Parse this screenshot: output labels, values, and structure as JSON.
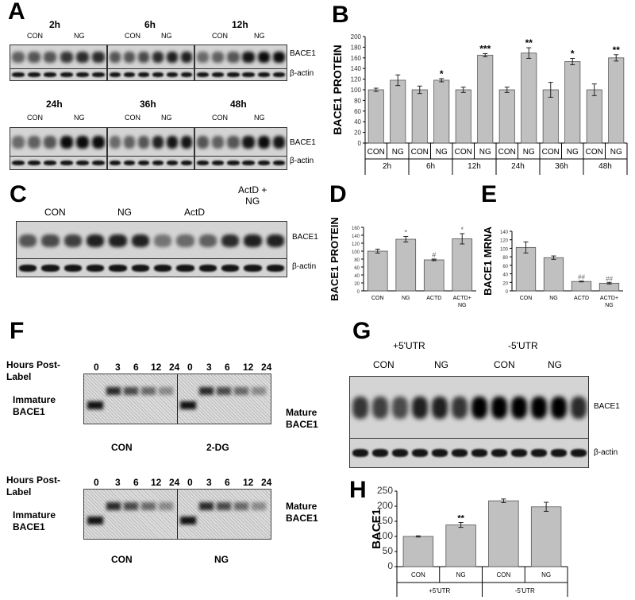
{
  "panels": {
    "A": "A",
    "B": "B",
    "C": "C",
    "D": "D",
    "E": "E",
    "F": "F",
    "G": "G",
    "H": "H"
  },
  "panelA": {
    "times_top": [
      "2h",
      "6h",
      "12h"
    ],
    "times_bottom": [
      "24h",
      "36h",
      "48h"
    ],
    "con": "CON",
    "ng": "NG",
    "bace1": "BACE1",
    "actin": "β-actin"
  },
  "panelC": {
    "groups": [
      "CON",
      "NG",
      "ActD",
      "ActD +\nNG"
    ],
    "bace1": "BACE1",
    "actin": "β-actin"
  },
  "panelF": {
    "hours_label": "Hours Post-\nLabel",
    "hours": [
      "0",
      "3",
      "6",
      "12",
      "24"
    ],
    "immature": "Immature\nBACE1",
    "mature": "Mature\nBACE1",
    "top_groups": [
      "CON",
      "2-DG"
    ],
    "bottom_groups": [
      "CON",
      "NG"
    ]
  },
  "panelG": {
    "groups": [
      "+5'UTR",
      "-5'UTR"
    ],
    "con": "CON",
    "ng": "NG",
    "bace1": "BACE1",
    "actin": "β-actin"
  },
  "chart_data": [
    {
      "id": "B",
      "type": "bar",
      "ylabel": "BACE1 PROTEIN",
      "ylim": [
        0,
        200
      ],
      "yticks": [
        0,
        20,
        40,
        60,
        80,
        100,
        120,
        140,
        160,
        180,
        200
      ],
      "categories": [
        "CON",
        "NG",
        "CON",
        "NG",
        "CON",
        "NG",
        "CON",
        "NG",
        "CON",
        "NG",
        "CON",
        "NG"
      ],
      "groups": [
        "2h",
        "6h",
        "12h",
        "24h",
        "36h",
        "48h"
      ],
      "values": [
        100,
        118,
        100,
        118,
        100,
        165,
        100,
        169,
        100,
        153,
        100,
        160
      ],
      "errors": [
        3,
        10,
        7,
        3,
        5,
        3,
        5,
        10,
        14,
        6,
        11,
        6
      ],
      "annotations": [
        "",
        "",
        "",
        "*",
        "",
        "***",
        "",
        "**",
        "",
        "*",
        "",
        "**"
      ]
    },
    {
      "id": "D",
      "type": "bar",
      "ylabel": "BACE1 PROTEIN",
      "ylim": [
        0,
        160
      ],
      "yticks": [
        0,
        20,
        40,
        60,
        80,
        100,
        120,
        140,
        160
      ],
      "categories": [
        "CON",
        "NG",
        "ACTD",
        "ACTD+\nNG"
      ],
      "values": [
        100,
        130,
        78,
        131
      ],
      "errors": [
        5,
        7,
        2,
        13
      ],
      "annotations": [
        "",
        "*",
        "#",
        "*"
      ]
    },
    {
      "id": "E",
      "type": "bar",
      "ylabel": "BACE1 MRNA",
      "ylim": [
        0,
        140
      ],
      "yticks": [
        0,
        20,
        40,
        60,
        80,
        100,
        120,
        140
      ],
      "categories": [
        "CON",
        "NG",
        "ACTD",
        "ACTD+\nNG"
      ],
      "values": [
        102,
        78,
        22,
        18
      ],
      "errors": [
        13,
        4,
        1,
        2
      ],
      "annotations": [
        "",
        "",
        "##",
        "##"
      ]
    },
    {
      "id": "H",
      "type": "bar",
      "ylabel": "BACE1",
      "ylim": [
        0,
        250
      ],
      "yticks": [
        0,
        50,
        100,
        150,
        200,
        250
      ],
      "categories": [
        "CON",
        "NG",
        "CON",
        "NG"
      ],
      "groups": [
        "+5'UTR",
        "-5'UTR"
      ],
      "values": [
        100,
        138,
        218,
        198
      ],
      "errors": [
        2,
        8,
        6,
        15
      ],
      "annotations": [
        "",
        "**",
        "",
        ""
      ]
    }
  ]
}
